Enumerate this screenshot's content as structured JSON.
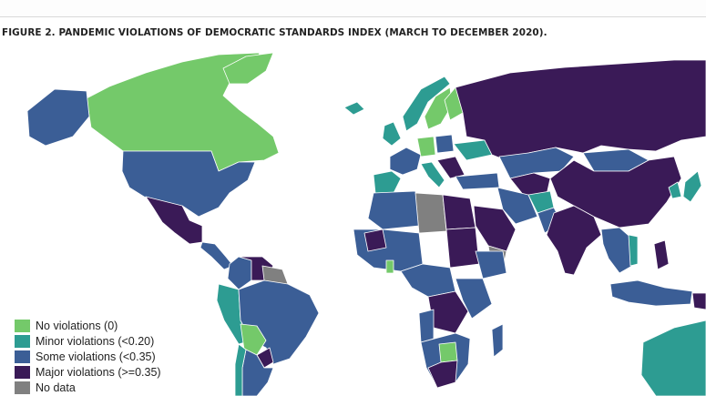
{
  "figure": {
    "title": "FIGURE 2. PANDEMIC VIOLATIONS OF DEMOCRATIC STANDARDS INDEX (MARCH TO DECEMBER 2020)."
  },
  "colors": {
    "none": "#74c96a",
    "minor": "#2d9c92",
    "some": "#3b5e96",
    "major": "#3a1a57",
    "nodata": "#808080",
    "ocean": "#ffffff"
  },
  "legend": {
    "items": [
      {
        "key": "none",
        "label": "No violations (0)",
        "color": "#74c96a"
      },
      {
        "key": "minor",
        "label": "Minor violations (<0.20)",
        "color": "#2d9c92"
      },
      {
        "key": "some",
        "label": "Some violations (<0.35)",
        "color": "#3b5e96"
      },
      {
        "key": "major",
        "label": "Major violations (>=0.35)",
        "color": "#3a1a57"
      },
      {
        "key": "nodata",
        "label": "No data",
        "color": "#808080"
      }
    ]
  }
}
